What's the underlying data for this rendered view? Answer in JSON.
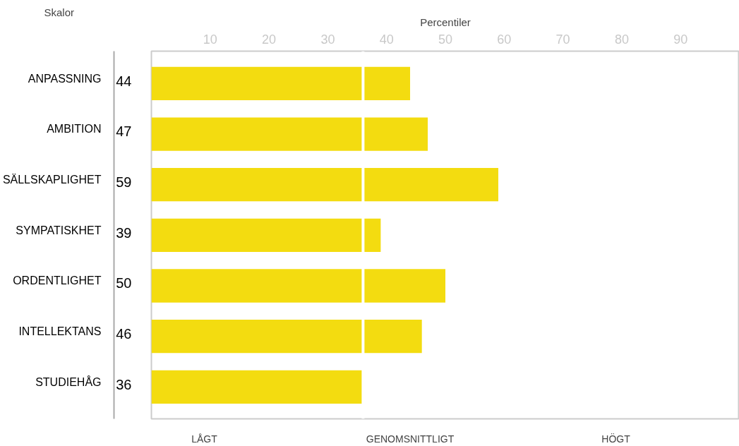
{
  "chart_data": {
    "type": "bar",
    "orientation": "horizontal",
    "ylabel": "Skalor",
    "xlabel": "Percentiler",
    "categories": [
      "ANPASSNING",
      "AMBITION",
      "SÄLLSKAPLIGHET",
      "SYMPATISKHET",
      "ORDENTLIGHET",
      "INTELLEKTANS",
      "STUDIEHÅG"
    ],
    "values": [
      44,
      47,
      59,
      39,
      50,
      46,
      36
    ],
    "color": "#f3dc10",
    "data_labels": true,
    "xlim": [
      0,
      100
    ],
    "xticks": [
      10,
      20,
      30,
      40,
      50,
      60,
      70,
      80,
      90
    ],
    "grid": false,
    "legend": false,
    "ref_lines": [
      {
        "axis": "x",
        "value": 36,
        "label": null,
        "color": "#ffffff"
      }
    ],
    "annotations": [
      "LÅGT",
      "GENOMSNITTLIGT",
      "HÖGT"
    ]
  }
}
